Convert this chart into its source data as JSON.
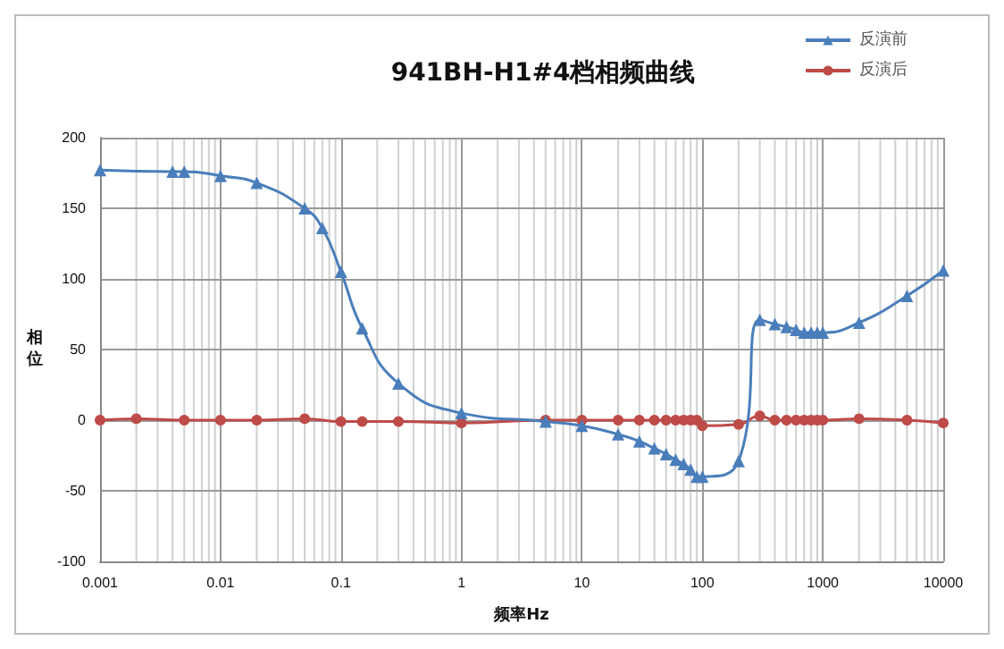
{
  "chart_data": {
    "type": "line",
    "title": "941BH-H1#4档相频曲线",
    "xlabel": "频率Hz",
    "ylabel": "相位",
    "log": "x",
    "xlim": [
      0.001,
      10000
    ],
    "xticks": [
      0.001,
      0.01,
      0.1,
      1,
      10,
      100,
      1000,
      10000
    ],
    "ylim": [
      -100,
      200
    ],
    "yticks": [
      -100,
      -50,
      0,
      50,
      100,
      150,
      200
    ],
    "grid": true,
    "legend": "top right",
    "series": [
      {
        "name": "反演前",
        "color": "#4a7ebb",
        "marker": "triangle",
        "x": [
          0.001,
          0.004,
          0.005,
          0.01,
          0.02,
          0.05,
          0.07,
          0.1,
          0.15,
          0.3,
          1,
          5,
          10,
          20,
          30,
          40,
          50,
          60,
          70,
          80,
          90,
          100,
          200,
          300,
          400,
          500,
          600,
          700,
          800,
          900,
          1000,
          2000,
          5000,
          10000
        ],
        "values": [
          177,
          176,
          176,
          173,
          168,
          150,
          136,
          105,
          65,
          26,
          5,
          -1,
          -4,
          -10,
          -15,
          -20,
          -24,
          -28,
          -31,
          -35,
          -40,
          -40,
          -29,
          71,
          68,
          66,
          64,
          62,
          62,
          62,
          62,
          69,
          88,
          106
        ]
      },
      {
        "name": "反演后",
        "color": "#be4b48",
        "marker": "circle",
        "x": [
          0.001,
          0.002,
          0.005,
          0.01,
          0.02,
          0.05,
          0.1,
          0.15,
          0.3,
          1,
          5,
          10,
          20,
          30,
          40,
          50,
          60,
          70,
          80,
          90,
          100,
          200,
          300,
          400,
          500,
          600,
          700,
          800,
          900,
          1000,
          2000,
          5000,
          10000
        ],
        "values": [
          0,
          1,
          0,
          0,
          0,
          1,
          -1,
          -1,
          -1,
          -2,
          0,
          0,
          0,
          0,
          0,
          0,
          0,
          0,
          0,
          0,
          -4,
          -3,
          3,
          0,
          0,
          0,
          0,
          0,
          0,
          0,
          1,
          0,
          -2
        ]
      }
    ]
  }
}
